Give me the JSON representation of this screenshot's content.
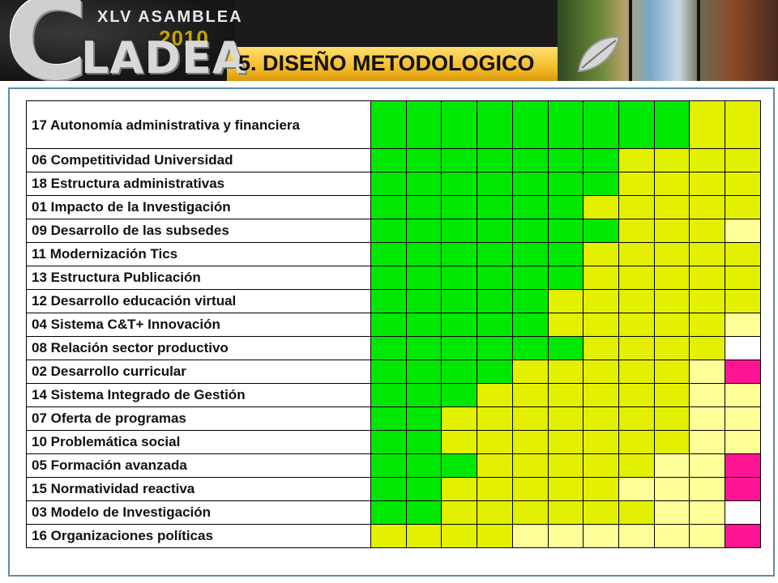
{
  "banner": {
    "brand_c": "C",
    "brand_rest": "LADEA",
    "assembly": "XLV ASAMBLEA",
    "year": "2010",
    "slide_title": "5. DISEÑO METODOLOGICO"
  },
  "colors": {
    "g": "#00e800",
    "y": "#e3f000",
    "l": "#ffff99",
    "w": "#ffffff",
    "p": "#ff1493"
  },
  "matrix": {
    "rows": [
      {
        "label": "17 Autonomía administrativa y financiera",
        "cells": [
          "g",
          "g",
          "g",
          "g",
          "g",
          "g",
          "g",
          "g",
          "g",
          "y",
          "y"
        ]
      },
      {
        "label": "06 Competitividad Universidad",
        "cells": [
          "g",
          "g",
          "g",
          "g",
          "g",
          "g",
          "g",
          "y",
          "y",
          "y",
          "y"
        ]
      },
      {
        "label": "18 Estructura administrativas",
        "cells": [
          "g",
          "g",
          "g",
          "g",
          "g",
          "g",
          "g",
          "y",
          "y",
          "y",
          "y"
        ]
      },
      {
        "label": "01 Impacto de la Investigación",
        "cells": [
          "g",
          "g",
          "g",
          "g",
          "g",
          "g",
          "y",
          "y",
          "y",
          "y",
          "y"
        ]
      },
      {
        "label": "09 Desarrollo de las subsedes",
        "cells": [
          "g",
          "g",
          "g",
          "g",
          "g",
          "g",
          "g",
          "y",
          "y",
          "y",
          "l"
        ]
      },
      {
        "label": "11 Modernización Tics",
        "cells": [
          "g",
          "g",
          "g",
          "g",
          "g",
          "g",
          "y",
          "y",
          "y",
          "y",
          "y"
        ]
      },
      {
        "label": "13 Estructura Publicación",
        "cells": [
          "g",
          "g",
          "g",
          "g",
          "g",
          "g",
          "y",
          "y",
          "y",
          "y",
          "y"
        ]
      },
      {
        "label": "12 Desarrollo educación virtual",
        "cells": [
          "g",
          "g",
          "g",
          "g",
          "g",
          "y",
          "y",
          "y",
          "y",
          "y",
          "y"
        ]
      },
      {
        "label": "04 Sistema C&T+ Innovación",
        "cells": [
          "g",
          "g",
          "g",
          "g",
          "g",
          "y",
          "y",
          "y",
          "y",
          "y",
          "l"
        ]
      },
      {
        "label": "08 Relación sector productivo",
        "cells": [
          "g",
          "g",
          "g",
          "g",
          "g",
          "g",
          "y",
          "y",
          "y",
          "y",
          "w"
        ]
      },
      {
        "label": "02 Desarrollo curricular",
        "cells": [
          "g",
          "g",
          "g",
          "g",
          "y",
          "y",
          "y",
          "y",
          "y",
          "l",
          "p"
        ]
      },
      {
        "label": "14 Sistema Integrado de Gestión",
        "cells": [
          "g",
          "g",
          "g",
          "y",
          "y",
          "y",
          "y",
          "y",
          "y",
          "l",
          "l"
        ]
      },
      {
        "label": "07 Oferta de programas",
        "cells": [
          "g",
          "g",
          "y",
          "y",
          "y",
          "y",
          "y",
          "y",
          "y",
          "l",
          "l"
        ]
      },
      {
        "label": "10 Problemática social",
        "cells": [
          "g",
          "g",
          "y",
          "y",
          "y",
          "y",
          "y",
          "y",
          "y",
          "l",
          "l"
        ]
      },
      {
        "label": "05 Formación avanzada",
        "cells": [
          "g",
          "g",
          "g",
          "y",
          "y",
          "y",
          "y",
          "y",
          "l",
          "l",
          "p"
        ]
      },
      {
        "label": "15 Normatividad reactiva",
        "cells": [
          "g",
          "g",
          "y",
          "y",
          "y",
          "y",
          "y",
          "l",
          "l",
          "l",
          "p"
        ]
      },
      {
        "label": "03 Modelo de Investigación",
        "cells": [
          "g",
          "g",
          "y",
          "y",
          "y",
          "y",
          "y",
          "y",
          "l",
          "l",
          "w"
        ]
      },
      {
        "label": "16 Organizaciones políticas",
        "cells": [
          "y",
          "y",
          "y",
          "y",
          "l",
          "l",
          "l",
          "l",
          "l",
          "l",
          "p"
        ]
      }
    ]
  }
}
